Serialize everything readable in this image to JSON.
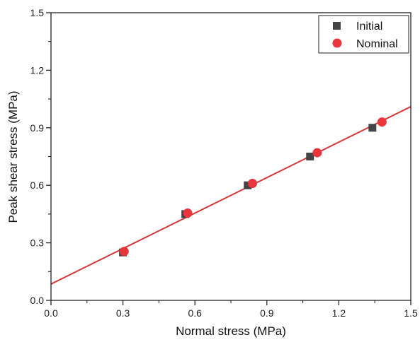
{
  "chart_data": {
    "type": "scatter",
    "xlabel": "Normal stress (MPa)",
    "ylabel": "Peak shear stress (MPa)",
    "xlim": [
      0.0,
      1.5
    ],
    "ylim": [
      0.0,
      1.5
    ],
    "xticks": [
      "0.0",
      "0.3",
      "0.6",
      "0.9",
      "1.2",
      "1.5"
    ],
    "yticks": [
      "0.0",
      "0.3",
      "0.6",
      "0.9",
      "1.2",
      "1.5"
    ],
    "grid": false,
    "legend_position": "top-right",
    "series": [
      {
        "name": "Initial",
        "marker": "square",
        "color": "#444444",
        "x": [
          0.3,
          0.56,
          0.82,
          1.08,
          1.34
        ],
        "y": [
          0.25,
          0.45,
          0.6,
          0.75,
          0.9
        ]
      },
      {
        "name": "Nominal",
        "marker": "circle",
        "color": "#e8363a",
        "x": [
          0.305,
          0.57,
          0.84,
          1.11,
          1.38
        ],
        "y": [
          0.255,
          0.455,
          0.61,
          0.77,
          0.93
        ]
      }
    ],
    "fit_line": {
      "color": "#d23a3a",
      "x": [
        0.0,
        1.5
      ],
      "y": [
        0.085,
        1.01
      ]
    }
  }
}
